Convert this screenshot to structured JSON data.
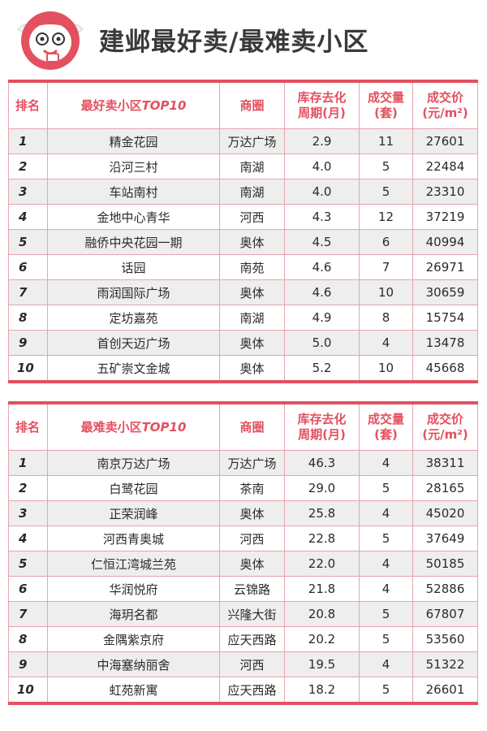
{
  "page": {
    "title": "建邺最好卖/最难卖小区"
  },
  "best": {
    "headers": [
      "排名",
      "最好卖小区TOP10",
      "商圈",
      "库存去化周期(月)",
      "成交量(套)",
      "成交价(元/m²)"
    ],
    "header_lines": {
      "h1": "排名",
      "h2a": "最好卖小区",
      "h2b": "TOP10",
      "h3": "商圈",
      "h4a": "库存去化",
      "h4b": "周期(月)",
      "h5a": "成交量",
      "h5b": "(套)",
      "h6a": "成交价",
      "h6b": "(元/m²)"
    },
    "rows": [
      {
        "rank": "1",
        "name": "精金花园",
        "area": "万达广场",
        "cycle": "2.9",
        "volume": "11",
        "price": "27601"
      },
      {
        "rank": "2",
        "name": "沿河三村",
        "area": "南湖",
        "cycle": "4.0",
        "volume": "5",
        "price": "22484"
      },
      {
        "rank": "3",
        "name": "车站南村",
        "area": "南湖",
        "cycle": "4.0",
        "volume": "5",
        "price": "23310"
      },
      {
        "rank": "4",
        "name": "金地中心青华",
        "area": "河西",
        "cycle": "4.3",
        "volume": "12",
        "price": "37219"
      },
      {
        "rank": "5",
        "name": "融侨中央花园一期",
        "area": "奥体",
        "cycle": "4.5",
        "volume": "6",
        "price": "40994"
      },
      {
        "rank": "6",
        "name": "话园",
        "area": "南苑",
        "cycle": "4.6",
        "volume": "7",
        "price": "26971"
      },
      {
        "rank": "7",
        "name": "雨润国际广场",
        "area": "奥体",
        "cycle": "4.6",
        "volume": "10",
        "price": "30659"
      },
      {
        "rank": "8",
        "name": "定坊嘉苑",
        "area": "南湖",
        "cycle": "4.9",
        "volume": "8",
        "price": "15754"
      },
      {
        "rank": "9",
        "name": "首创天迈广场",
        "area": "奥体",
        "cycle": "5.0",
        "volume": "4",
        "price": "13478"
      },
      {
        "rank": "10",
        "name": "五矿崇文金城",
        "area": "奥体",
        "cycle": "5.2",
        "volume": "10",
        "price": "45668"
      }
    ]
  },
  "worst": {
    "headers": [
      "排名",
      "最难卖小区TOP10",
      "商圈",
      "库存去化周期(月)",
      "成交量(套)",
      "成交价(元/m²)"
    ],
    "header_lines": {
      "h1": "排名",
      "h2a": "最难卖小区",
      "h2b": "TOP10",
      "h3": "商圈",
      "h4a": "库存去化",
      "h4b": "周期(月)",
      "h5a": "成交量",
      "h5b": "(套)",
      "h6a": "成交价",
      "h6b": "(元/m²)"
    },
    "rows": [
      {
        "rank": "1",
        "name": "南京万达广场",
        "area": "万达广场",
        "cycle": "46.3",
        "volume": "4",
        "price": "38311"
      },
      {
        "rank": "2",
        "name": "白鹭花园",
        "area": "茶南",
        "cycle": "29.0",
        "volume": "5",
        "price": "28165"
      },
      {
        "rank": "3",
        "name": "正荣润峰",
        "area": "奥体",
        "cycle": "25.8",
        "volume": "4",
        "price": "45020"
      },
      {
        "rank": "4",
        "name": "河西青奥城",
        "area": "河西",
        "cycle": "22.8",
        "volume": "5",
        "price": "37649"
      },
      {
        "rank": "5",
        "name": "仁恒江湾城兰苑",
        "area": "奥体",
        "cycle": "22.0",
        "volume": "4",
        "price": "50185"
      },
      {
        "rank": "6",
        "name": "华润悦府",
        "area": "云锦路",
        "cycle": "21.8",
        "volume": "4",
        "price": "52886"
      },
      {
        "rank": "7",
        "name": "海玥名都",
        "area": "兴隆大街",
        "cycle": "20.8",
        "volume": "5",
        "price": "67807"
      },
      {
        "rank": "8",
        "name": "金隅紫京府",
        "area": "应天西路",
        "cycle": "20.2",
        "volume": "5",
        "price": "53560"
      },
      {
        "rank": "9",
        "name": "中海塞纳丽舍",
        "area": "河西",
        "cycle": "19.5",
        "volume": "4",
        "price": "51322"
      },
      {
        "rank": "10",
        "name": "虹苑新寓",
        "area": "应天西路",
        "cycle": "18.2",
        "volume": "5",
        "price": "26601"
      }
    ]
  },
  "logo": {
    "icon": "cartoon-mascot-icon",
    "color": "#e3505f"
  },
  "colors": {
    "accent": "#e3505f",
    "row_alt": "#eeeeee",
    "grid": "#e6a4ab"
  }
}
